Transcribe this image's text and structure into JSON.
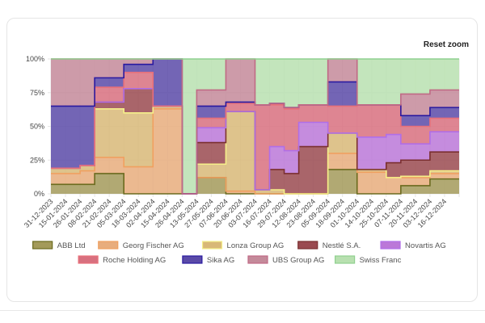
{
  "toolbar": {
    "reset_zoom_label": "Reset zoom"
  },
  "chart_data": {
    "type": "area",
    "stacked": true,
    "stepped": true,
    "normalized": "percent",
    "ylim": [
      0,
      100
    ],
    "y_ticks": [
      "0%",
      "25%",
      "50%",
      "75%",
      "100%"
    ],
    "x_tick_labels": [
      "31-12-2023",
      "15-01-2024",
      "26-01-2024",
      "08-02-2024",
      "21-02-2024",
      "05-03-2024",
      "18-03-2024",
      "02-04-2024",
      "15-04-2024",
      "26-04-2024",
      "13-05-2024",
      "27-05-2024",
      "07-06-2024",
      "20-06-2024",
      "03-07-2024",
      "16-07-2024",
      "29-07-2024",
      "12-08-2024",
      "23-08-2024",
      "05-09-2024",
      "18-09-2024",
      "01-10-2024",
      "14-10-2024",
      "25-10-2024",
      "07-11-2024",
      "20-11-2024",
      "03-12-2024",
      "16-12-2024"
    ],
    "x": [
      "31-12-2023",
      "15-01-2024",
      "26-01-2024",
      "08-02-2024",
      "21-02-2024",
      "05-03-2024",
      "18-03-2024",
      "02-04-2024",
      "15-04-2024",
      "26-04-2024",
      "13-05-2024",
      "27-05-2024",
      "07-06-2024",
      "20-06-2024",
      "03-07-2024",
      "16-07-2024",
      "29-07-2024",
      "12-08-2024",
      "23-08-2024",
      "05-09-2024",
      "18-09-2024",
      "01-10-2024",
      "14-10-2024",
      "25-10-2024",
      "07-11-2024",
      "20-11-2024",
      "03-12-2024",
      "16-12-2024"
    ],
    "legend_position": "bottom",
    "series": [
      {
        "name": "ABB Ltd",
        "color": "#6b6b1f",
        "fill": "#a39a5a",
        "values": [
          7,
          7,
          7,
          15,
          15,
          0,
          0,
          0,
          0,
          0,
          12,
          12,
          0,
          0,
          0,
          0,
          0,
          0,
          0,
          18,
          18,
          0,
          0,
          0,
          6,
          6,
          11,
          11
        ]
      },
      {
        "name": "Georg Fischer AG",
        "color": "#f0a060",
        "fill": "#e8ad7d",
        "values": [
          8,
          8,
          10,
          12,
          12,
          20,
          20,
          63,
          63,
          0,
          0,
          0,
          2,
          2,
          0,
          0,
          0,
          0,
          0,
          12,
          12,
          16,
          16,
          12,
          6,
          6,
          4,
          4
        ]
      },
      {
        "name": "Lonza Group AG",
        "color": "#f5f08a",
        "fill": "#d8b878",
        "values": [
          4,
          4,
          4,
          36,
          36,
          40,
          40,
          2,
          2,
          0,
          10,
          10,
          59,
          59,
          3,
          3,
          0,
          0,
          0,
          15,
          15,
          2,
          2,
          0,
          1,
          1,
          2,
          2
        ]
      },
      {
        "name": "Nestlé S.A.",
        "color": "#7a2f2f",
        "fill": "#9a4a50",
        "values": [
          0,
          0,
          0,
          5,
          5,
          18,
          18,
          0,
          0,
          0,
          16,
          16,
          0,
          0,
          0,
          15,
          15,
          35,
          35,
          0,
          0,
          0,
          0,
          11,
          12,
          12,
          14,
          14
        ]
      },
      {
        "name": "Novartis AG",
        "color": "#b06ee8",
        "fill": "#bb78d8",
        "values": [
          0,
          0,
          0,
          0,
          0,
          0,
          0,
          0,
          0,
          0,
          11,
          11,
          0,
          0,
          0,
          17,
          17,
          18,
          18,
          0,
          0,
          24,
          24,
          21,
          12,
          12,
          15,
          15
        ]
      },
      {
        "name": "Roche Holding AG",
        "color": "#e8707a",
        "fill": "#d8707f",
        "values": [
          0,
          0,
          0,
          11,
          11,
          12,
          12,
          0,
          0,
          0,
          7,
          7,
          6,
          6,
          63,
          31,
          31,
          13,
          13,
          20,
          20,
          24,
          24,
          22,
          13,
          13,
          10,
          10
        ]
      },
      {
        "name": "Sika AG",
        "color": "#2a1aa0",
        "fill": "#5a4aa8",
        "values": [
          46,
          46,
          44,
          7,
          7,
          6,
          6,
          35,
          35,
          0,
          9,
          9,
          1,
          1,
          0,
          1,
          1,
          0,
          0,
          18,
          18,
          0,
          0,
          0,
          8,
          8,
          8,
          8
        ]
      },
      {
        "name": "UBS Group AG",
        "color": "#c06a85",
        "fill": "#c48a9a",
        "values": [
          35,
          35,
          35,
          14,
          14,
          4,
          4,
          0,
          0,
          0,
          12,
          12,
          32,
          32,
          0,
          0,
          0,
          0,
          0,
          17,
          17,
          0,
          0,
          0,
          16,
          16,
          13,
          13
        ]
      },
      {
        "name": "Swiss Franc",
        "color": "#90d090",
        "fill": "#b8e0b0",
        "values": [
          0,
          0,
          0,
          0,
          0,
          0,
          0,
          0,
          0,
          100,
          23,
          23,
          0,
          0,
          34,
          33,
          36,
          34,
          34,
          0,
          0,
          34,
          34,
          34,
          26,
          26,
          23,
          23
        ]
      }
    ]
  }
}
